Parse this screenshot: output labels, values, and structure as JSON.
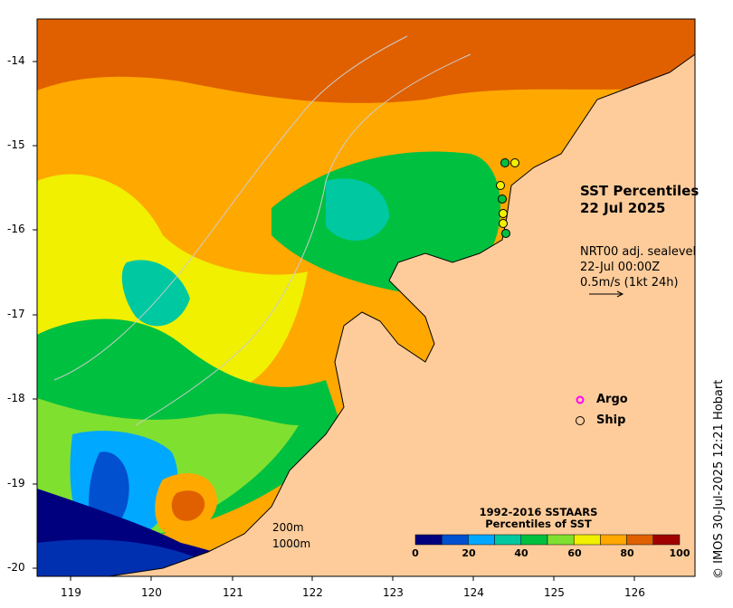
{
  "map": {
    "title_line1": "SST Percentiles",
    "title_line2": "22 Jul 2025",
    "vector_info": [
      "NRT00 adj. sealevel",
      "22-Jul 00:00Z",
      "0.5m/s (1kt 24h)"
    ],
    "lat_labels": [
      "-14",
      "-15",
      "-16",
      "-17",
      "-18",
      "-19",
      "-20"
    ],
    "lon_labels": [
      "119",
      "120",
      "121",
      "122",
      "123",
      "124",
      "125",
      "126"
    ],
    "legend": {
      "argo": "Argo",
      "ship": "Ship",
      "argo_color": "#ff00ff",
      "ship_color": "#000000"
    },
    "colorbar": {
      "title_line1": "1992-2016 SSTAARS",
      "title_line2": "Percentiles of SST",
      "ticks": [
        "0",
        "20",
        "40",
        "60",
        "80",
        "100"
      ],
      "colors": [
        "#00007f",
        "#0050d0",
        "#00a8ff",
        "#00c8a0",
        "#00c040",
        "#80e030",
        "#f0f000",
        "#ffa800",
        "#e06000",
        "#a00000"
      ]
    },
    "scale_labels": [
      "200m",
      "1000m"
    ],
    "credit": "© IMOS 30-Jul-2025 12:21 Hobart",
    "land_color": "#fdcc9a"
  }
}
